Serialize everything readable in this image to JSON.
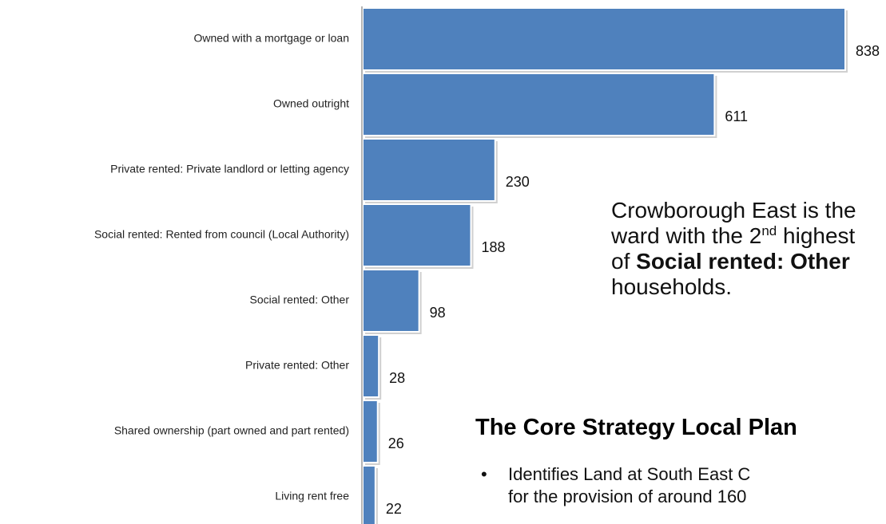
{
  "chart_data": {
    "type": "bar",
    "orientation": "horizontal",
    "categories": [
      "Owned with a mortgage or loan",
      "Owned outright",
      "Private rented: Private landlord or letting agency",
      "Social rented: Rented from council (Local Authority)",
      "Social rented: Other",
      "Private rented: Other",
      "Shared ownership (part owned and part rented)",
      "Living rent free"
    ],
    "values": [
      838,
      611,
      230,
      188,
      98,
      28,
      26,
      22
    ],
    "data_labels": [
      "838",
      "611",
      "230",
      "188",
      "98",
      "28",
      "26",
      "22"
    ],
    "bar_color": "#4f81bd",
    "title": "",
    "xlabel": "",
    "ylabel": "",
    "xlim": [
      0,
      838
    ],
    "grid": false,
    "legend": "none"
  },
  "callout": {
    "line1": "Crowborough East is the",
    "line2_pre": "ward with the 2",
    "line2_sup": "nd",
    "line2_post": " highest",
    "line3_pre": "of ",
    "line3_bold": "Social rented: Other",
    "line4": "households."
  },
  "section": {
    "heading": "The Core Strategy Local Plan",
    "bullet_symbol": "•",
    "bullet_line1": "Identifies Land at South East C",
    "bullet_line2": "for the provision of around 160"
  }
}
